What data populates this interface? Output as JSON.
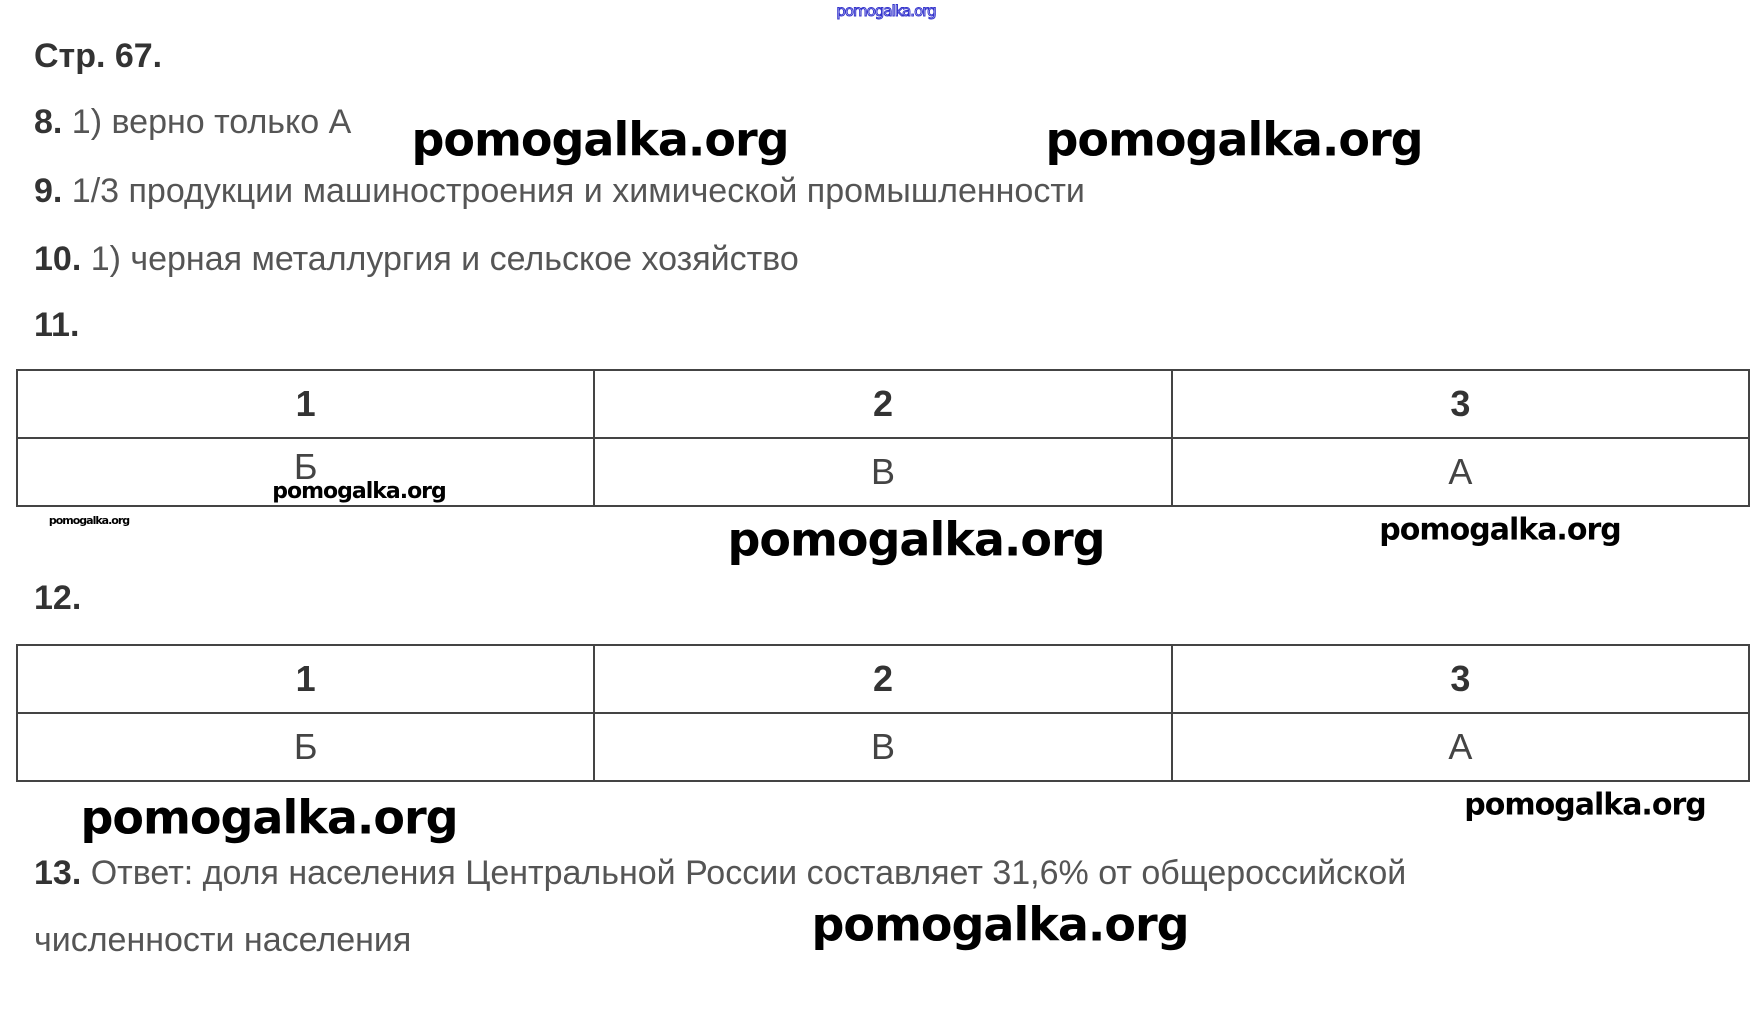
{
  "header": {
    "page": "Стр. 67."
  },
  "answers": [
    {
      "num": "8.",
      "text": " 1) верно только А"
    },
    {
      "num": "9.",
      "text": " 1/3 продукции машиностроения и химической промышленности"
    },
    {
      "num": "10.",
      "text": " 1) черная металлургия и сельское хозяйство"
    },
    {
      "num": "11.",
      "text": ""
    },
    {
      "num": "12.",
      "text": ""
    },
    {
      "num": "13.",
      "text": " Ответ: доля населения Центральной России составляет 31,6% от общероссийской"
    }
  ],
  "answer13_continuation": "численности населения",
  "table11": {
    "headers": [
      "1",
      "2",
      "3"
    ],
    "values": [
      "Б",
      "В",
      "А"
    ]
  },
  "table12": {
    "headers": [
      "1",
      "2",
      "3"
    ],
    "values": [
      "Б",
      "В",
      "А"
    ]
  },
  "watermark": "pomogalka.org"
}
